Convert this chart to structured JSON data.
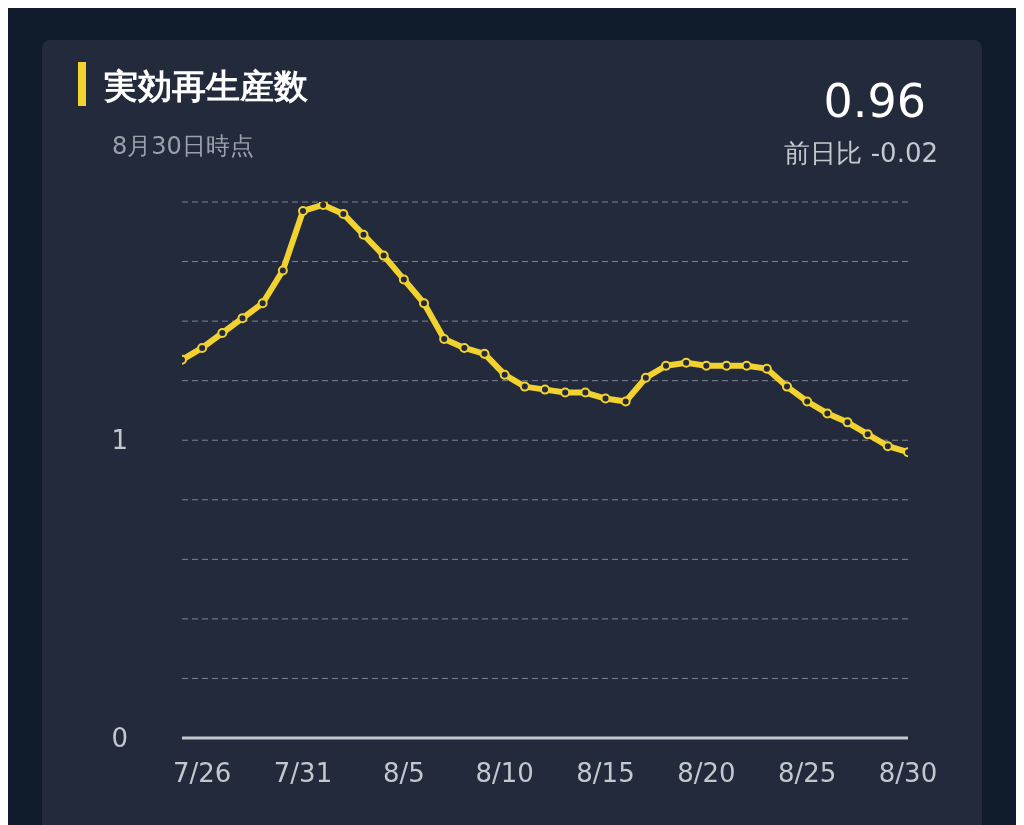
{
  "chart_data": {
    "type": "line",
    "title": "実効再生産数",
    "subtitle": "8月30日時点",
    "annotations": [
      "0.96",
      "前日比 -0.02"
    ],
    "x": [
      "--07-25",
      "--07-26",
      "--07-27",
      "--07-28",
      "--07-29",
      "--07-30",
      "--07-31",
      "--08-01",
      "--08-02",
      "--08-03",
      "--08-04",
      "--08-05",
      "--08-06",
      "--08-07",
      "--08-08",
      "--08-09",
      "--08-10",
      "--08-11",
      "--08-12",
      "--08-13",
      "--08-14",
      "--08-15",
      "--08-16",
      "--08-17",
      "--08-18",
      "--08-19",
      "--08-20",
      "--08-21",
      "--08-22",
      "--08-23",
      "--08-24",
      "--08-25",
      "--08-26",
      "--08-27",
      "--08-28",
      "--08-29",
      "--08-30"
    ],
    "series": [
      {
        "color": "#f2d22e",
        "values": [
          1.27,
          1.31,
          1.36,
          1.41,
          1.46,
          1.57,
          1.77,
          1.79,
          1.76,
          1.69,
          1.62,
          1.54,
          1.46,
          1.34,
          1.31,
          1.29,
          1.22,
          1.18,
          1.17,
          1.16,
          1.16,
          1.14,
          1.13,
          1.21,
          1.25,
          1.26,
          1.25,
          1.25,
          1.25,
          1.24,
          1.18,
          1.13,
          1.09,
          1.06,
          1.02,
          0.98,
          0.96
        ]
      }
    ],
    "xlim": [
      "--07-25",
      "--08-30"
    ],
    "xticks": [
      {
        "value": "--07-26",
        "label": "7/26"
      },
      {
        "value": "--07-31",
        "label": "7/31"
      },
      {
        "value": "--08-05",
        "label": "8/5"
      },
      {
        "value": "--08-10",
        "label": "8/10"
      },
      {
        "value": "--08-15",
        "label": "8/15"
      },
      {
        "value": "--08-20",
        "label": "8/20"
      },
      {
        "value": "--08-25",
        "label": "8/25"
      },
      {
        "value": "--08-30",
        "label": "8/30"
      }
    ],
    "ylim": [
      0,
      1.8
    ],
    "yticks": [
      0,
      {
        "value": 0.2,
        "label": null
      },
      {
        "value": 0.4,
        "label": null
      },
      {
        "value": 0.6,
        "label": null
      },
      {
        "value": 0.8,
        "label": null
      },
      1,
      {
        "value": 1.2,
        "label": null
      },
      {
        "value": 1.4,
        "label": null
      },
      {
        "value": 1.6,
        "label": null
      },
      {
        "value": 1.8,
        "label": null
      }
    ],
    "grid": "y",
    "marker": "circle",
    "line_style": "solid"
  }
}
